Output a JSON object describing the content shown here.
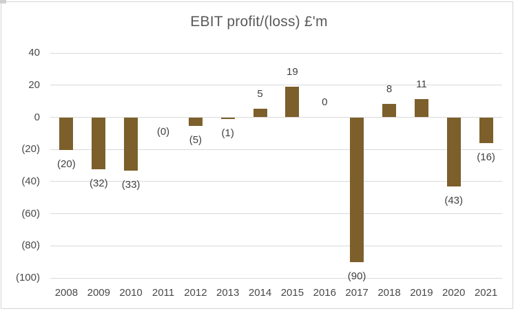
{
  "chart": {
    "title": "EBIT profit/(loss) £'m"
  },
  "chart_data": {
    "type": "bar",
    "title": "EBIT profit/(loss) £'m",
    "categories": [
      "2008",
      "2009",
      "2010",
      "2011",
      "2012",
      "2013",
      "2014",
      "2015",
      "2016",
      "2017",
      "2018",
      "2019",
      "2020",
      "2021"
    ],
    "values": [
      -20,
      -32,
      -33,
      0,
      -5,
      -1,
      5,
      19,
      0,
      -90,
      8,
      11,
      -43,
      -16
    ],
    "data_labels": [
      "(20)",
      "(32)",
      "(33)",
      "(0)",
      "(5)",
      "(1)",
      "5",
      "19",
      "0",
      "(90)",
      "8",
      "11",
      "(43)",
      "(16)"
    ],
    "y_ticks": [
      40,
      20,
      0,
      -20,
      -40,
      -60,
      -80,
      -100
    ],
    "y_tick_labels": [
      "40",
      "20",
      "0",
      "(20)",
      "(40)",
      "(60)",
      "(80)",
      "(100)"
    ],
    "ylim": [
      -100,
      40
    ],
    "xlabel": "",
    "ylabel": "",
    "grid": "horizontal",
    "legend": "none",
    "colors": {
      "bar": "#7C5F2A",
      "gridline": "#D9D9D9",
      "axis_text": "#484848",
      "data_label_text": "#404040",
      "title_text": "#595959",
      "border": "#D4D4D4",
      "background": "#FFFFFF"
    }
  }
}
